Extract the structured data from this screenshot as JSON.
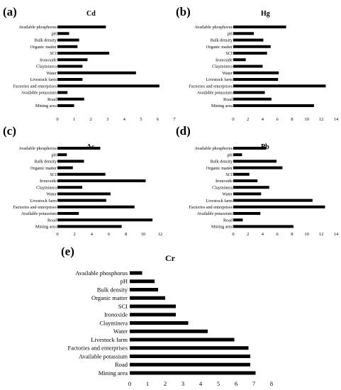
{
  "chart_data": [
    {
      "type": "bar",
      "orientation": "horizontal",
      "panel_label": "(a)",
      "title": "Cd",
      "categories": [
        "Available phosphorus",
        "pH",
        "Bulk density",
        "Organic matter",
        "SCI",
        "Ironoxide",
        "Clayminera",
        "Water",
        "Livestock farm",
        "Factories and enterprises",
        "Available potassium",
        "Road",
        "Mining area"
      ],
      "values": [
        2.9,
        0.7,
        1.3,
        1.2,
        3.1,
        1.8,
        1.5,
        4.7,
        1.5,
        6.1,
        0.6,
        1.6,
        1.0
      ],
      "xticks": [
        "0",
        "1",
        "2",
        "3",
        "4",
        "5",
        "6",
        "7"
      ],
      "xlim": [
        0,
        7
      ]
    },
    {
      "type": "bar",
      "orientation": "horizontal",
      "panel_label": "(b)",
      "title": "Hg",
      "categories": [
        "Available phosphorus",
        "pH",
        "Bulk density",
        "Organic matter",
        "SCI",
        "Ironoxide",
        "Clayminera",
        "Water",
        "Livestock farm",
        "Factories and enterprises",
        "Available potassium",
        "Road",
        "Mining area"
      ],
      "values": [
        7.2,
        2.8,
        4.1,
        5.1,
        4.6,
        1.7,
        4.0,
        6.2,
        6.1,
        12.6,
        4.3,
        5.2,
        11.0
      ],
      "xticks": [
        "0",
        "2",
        "4",
        "6",
        "8",
        "10",
        "12",
        "14"
      ],
      "xlim": [
        0,
        14
      ]
    },
    {
      "type": "bar",
      "orientation": "horizontal",
      "panel_label": "(c)",
      "title": "As",
      "categories": [
        "Available phosphorus",
        "pH",
        "Bulk density",
        "Organic matter",
        "SCI",
        "Ironoxide",
        "Clayminera",
        "Water",
        "Livestock farm",
        "Factories and enterprises",
        "Available potassium",
        "Road",
        "Mining area"
      ],
      "values": [
        5.0,
        1.1,
        3.1,
        1.8,
        5.6,
        10.3,
        2.9,
        6.2,
        5.7,
        9.0,
        2.5,
        11.1,
        7.5
      ],
      "xticks": [
        "0",
        "2",
        "4",
        "6",
        "8",
        "10",
        "12"
      ],
      "xlim": [
        0,
        12
      ]
    },
    {
      "type": "bar",
      "orientation": "horizontal",
      "panel_label": "(d)",
      "title": "Pb",
      "categories": [
        "Available phosphorus",
        "pH",
        "Bulk density",
        "Organic matter",
        "SCI",
        "Ironoxide",
        "Clayminera",
        "Water",
        "Livestock farm",
        "Factories and enterprises",
        "Available potassium",
        "Road",
        "Mining area"
      ],
      "values": [
        4.5,
        1.2,
        5.9,
        6.7,
        2.2,
        3.3,
        4.9,
        3.8,
        10.8,
        12.5,
        3.7,
        1.3,
        8.2
      ],
      "xticks": [
        "0",
        "2",
        "4",
        "6",
        "8",
        "10",
        "12",
        "14"
      ],
      "xlim": [
        0,
        14
      ]
    },
    {
      "type": "bar",
      "orientation": "horizontal",
      "panel_label": "(e)",
      "title": "Cr",
      "categories": [
        "Available phosphorus",
        "pH",
        "Bulk density",
        "Organic matter",
        "SCI",
        "Ironoxide",
        "Clayminera",
        "Water",
        "Livestock farm",
        "Factories and enterprises",
        "Available potassium",
        "Road",
        "Mining area"
      ],
      "values": [
        0.7,
        1.4,
        1.6,
        2.0,
        2.6,
        2.6,
        3.3,
        4.4,
        5.9,
        6.7,
        6.8,
        6.8,
        7.1
      ],
      "xticks": [
        "0",
        "1",
        "2",
        "3",
        "4",
        "5",
        "6",
        "7",
        "8"
      ],
      "xlim": [
        0,
        8
      ]
    }
  ]
}
